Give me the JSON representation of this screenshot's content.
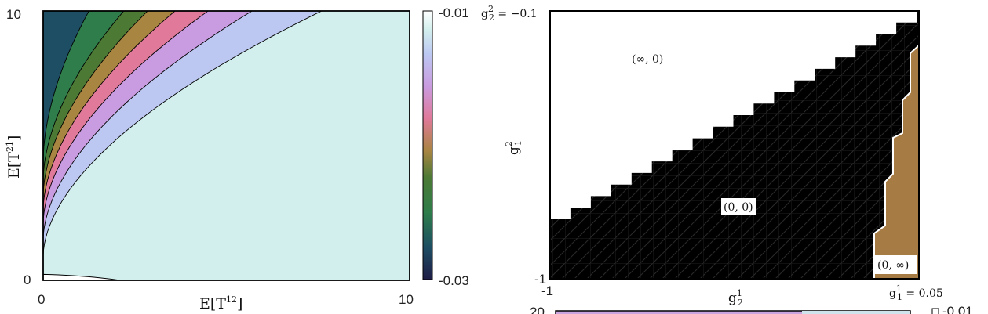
{
  "chart_data": [
    {
      "type": "contour",
      "xlabel": "E[T^12]",
      "ylabel": "E[T^21]",
      "xlim": [
        0,
        10
      ],
      "ylim": [
        0,
        10
      ],
      "x_ticks": [
        "0",
        "10"
      ],
      "y_ticks": [
        "0",
        "10"
      ],
      "colorbar": {
        "min": -0.03,
        "max": -0.01,
        "ticks": [
          "-0.01",
          "-0.03"
        ]
      },
      "levels": [
        {
          "value": -0.0108,
          "color": "#d2efed",
          "x_at_top": 10.0,
          "x_at_bottom": 2.1
        },
        {
          "value": -0.013,
          "color": "#bcc8f2",
          "x_at_top": 7.6,
          "x_at_bottom": 0.0
        },
        {
          "value": -0.015,
          "color": "#c99be0",
          "x_at_top": 5.7,
          "x_at_bottom": 0.0
        },
        {
          "value": -0.017,
          "color": "#e0799a",
          "x_at_top": 4.5,
          "x_at_bottom": 0.0
        },
        {
          "value": -0.019,
          "color": "#a98542",
          "x_at_top": 3.6,
          "x_at_bottom": 0.0
        },
        {
          "value": -0.021,
          "color": "#4c7a35",
          "x_at_top": 2.85,
          "x_at_bottom": 0.0
        },
        {
          "value": -0.023,
          "color": "#2e7d4a",
          "x_at_top": 2.2,
          "x_at_bottom": 0.0
        },
        {
          "value": -0.0255,
          "color": "#1d4e63",
          "x_at_top": 1.25,
          "x_at_bottom": 0.0
        },
        {
          "value": -0.0285,
          "color": "#1e1c45",
          "x_at_top": 0.0,
          "x_at_bottom": 0.0
        }
      ]
    },
    {
      "type": "region",
      "xlabel": "g_2^1",
      "ylabel": "g_1^2",
      "xlim": [
        -1,
        0.05
      ],
      "ylim": [
        -1,
        -0.1
      ],
      "x_ticks": [
        "-1"
      ],
      "y_ticks": [
        "-1"
      ],
      "corner_labels": {
        "x_end": "g_1^1 = 0.05",
        "y_end": "g_2^2 = −0.1"
      },
      "regions": [
        {
          "label": "(∞, 0)",
          "color": "#ffffff"
        },
        {
          "label": "(0, 0)",
          "color": "#000000"
        },
        {
          "label": "(0, ∞)",
          "color": "#a67c44"
        }
      ]
    },
    {
      "type": "partial",
      "visible_ticks": [
        "20",
        "-0.01"
      ]
    }
  ]
}
